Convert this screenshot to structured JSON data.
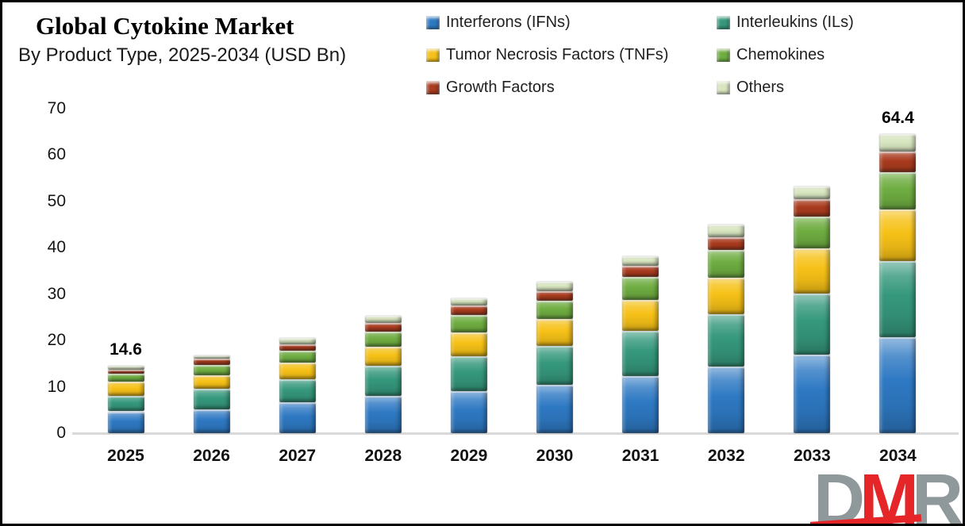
{
  "header": {
    "title": "Global Cytokine Market",
    "subtitle": "By Product Type, 2025-2034 (USD Bn)"
  },
  "logo": {
    "letters": [
      "D",
      "M",
      "R"
    ],
    "gray": "#8f999b",
    "red": "#e52528"
  },
  "chart_data": {
    "type": "bar",
    "stacked": true,
    "title": "Global Cytokine Market",
    "subtitle": "By Product Type, 2025-2034 (USD Bn)",
    "unit": "USD Bn",
    "grid": false,
    "legend_position": "top-right",
    "categories": [
      "2025",
      "2026",
      "2027",
      "2028",
      "2029",
      "2030",
      "2031",
      "2032",
      "2033",
      "2034"
    ],
    "series": [
      {
        "id": "interferons",
        "name": "Interferons (IFNs)",
        "color": "#2e79c3",
        "values": [
          4.7,
          5.2,
          6.7,
          8.0,
          9.1,
          10.5,
          12.3,
          14.3,
          16.9,
          20.7
        ]
      },
      {
        "id": "interleukins",
        "name": "Interleukins (ILs)",
        "color": "#35987c",
        "values": [
          3.3,
          4.4,
          4.9,
          6.5,
          7.4,
          8.3,
          9.7,
          11.4,
          13.2,
          16.4
        ]
      },
      {
        "id": "tnfs",
        "name": "Tumor Necrosis Factors (TNFs)",
        "color": "#f6c117",
        "values": [
          3.1,
          2.9,
          3.6,
          4.1,
          5.2,
          5.8,
          6.8,
          7.8,
          9.7,
          11.1
        ]
      },
      {
        "id": "chemokines",
        "name": "Chemokines",
        "color": "#6fad41",
        "values": [
          1.7,
          2.2,
          2.6,
          3.3,
          3.7,
          3.9,
          4.8,
          6.0,
          6.9,
          8.0
        ]
      },
      {
        "id": "growth-factors",
        "name": "Growth Factors",
        "color": "#a93b1e",
        "values": [
          0.8,
          1.3,
          1.4,
          1.9,
          2.2,
          2.1,
          2.5,
          2.7,
          3.7,
          4.4
        ]
      },
      {
        "id": "others",
        "name": "Others",
        "color": "#d8e6c0",
        "values": [
          1.0,
          0.8,
          1.3,
          1.5,
          1.5,
          2.0,
          2.1,
          2.7,
          2.7,
          3.8
        ]
      }
    ],
    "totals": [
      14.6,
      16.8,
      20.5,
      25.3,
      29.1,
      32.6,
      38.2,
      44.9,
      53.1,
      64.4
    ],
    "bar_labels": [
      "14.6",
      "",
      "",
      "",
      "",
      "",
      "",
      "",
      "",
      "64.4"
    ],
    "y_axis": {
      "ticks": [
        0,
        10,
        20,
        30,
        40,
        50,
        60,
        70
      ],
      "ylim": [
        0,
        70
      ]
    }
  }
}
